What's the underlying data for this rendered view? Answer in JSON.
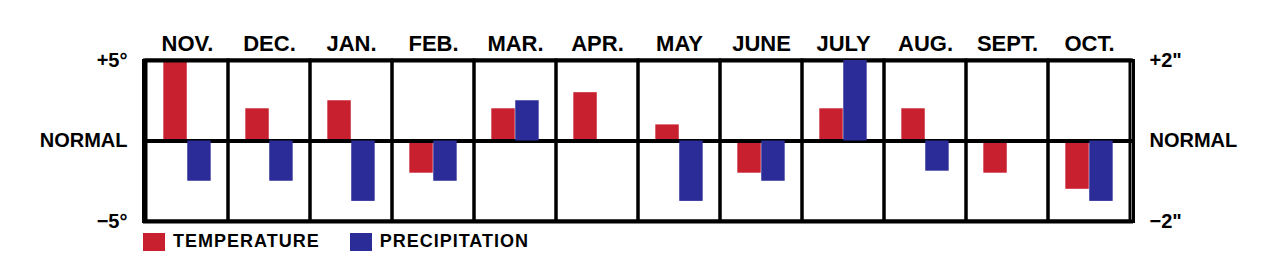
{
  "chart_data": {
    "type": "bar",
    "categories": [
      "NOV.",
      "DEC.",
      "JAN.",
      "FEB.",
      "MAR.",
      "APR.",
      "MAY",
      "JUNE",
      "JULY",
      "AUG.",
      "SEPT.",
      "OCT."
    ],
    "series": [
      {
        "name": "TEMPERATURE",
        "color": "#c8202f",
        "values": [
          5,
          2,
          2.5,
          -2,
          2,
          3,
          1,
          -2,
          2,
          2,
          -2,
          -3
        ]
      },
      {
        "name": "PRECIPITATION",
        "color": "#2b2c97",
        "axis": "y2",
        "values": [
          -1,
          -1,
          -1.5,
          -1,
          1,
          0,
          -1.5,
          -1,
          2,
          -0.75,
          0,
          -1.5
        ]
      }
    ],
    "ylim": [
      -5,
      5
    ],
    "yticks": [
      {
        "value": 5,
        "label": "+5°"
      },
      {
        "value": 0,
        "label": "NORMAL"
      },
      {
        "value": -5,
        "label": "−5°"
      }
    ],
    "y2lim": [
      -2,
      2
    ],
    "y2ticks": [
      {
        "value": 2,
        "label": "+2\""
      },
      {
        "value": 0,
        "label": "NORMAL"
      },
      {
        "value": -2,
        "label": "−2\""
      }
    ],
    "grid": true,
    "legend": "bottom-left"
  }
}
